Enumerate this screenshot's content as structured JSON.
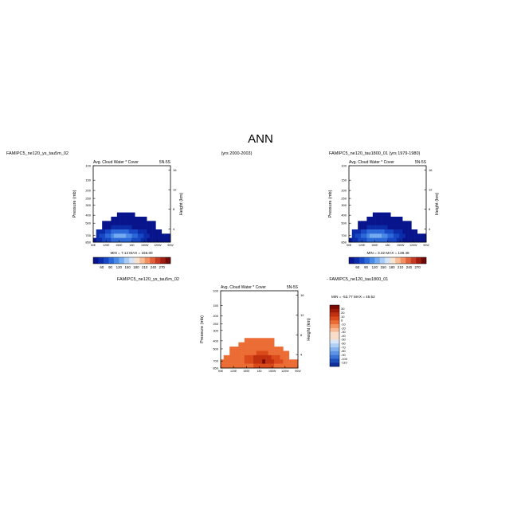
{
  "page": {
    "title": "ANN",
    "upper_left_label": "FAMIPC5_ne120_ys_tau5m_02",
    "upper_center_label": "(yrs 2000-2003)",
    "upper_right_label": "FAMIPC5_ne120_tau1800_01 (yrs 1979-1980)",
    "diff_left_label": "FAMIPC5_ne120_ys_tau5m_02",
    "diff_right_label": "- FAMIPC5_ne120_tau1800_01"
  },
  "colors": {
    "absolute_scale": [
      "#08148c",
      "#0b2ba8",
      "#1747c4",
      "#2c68d8",
      "#4a8ae6",
      "#73aaf0",
      "#a7cbf5",
      "#d4e4f8",
      "#f7e1cf",
      "#f7bd97",
      "#f29062",
      "#e2633b",
      "#c53b22",
      "#a01c12",
      "#6f0a08"
    ],
    "difference_scale": [
      "#0e2f9a",
      "#1d4fba",
      "#3a72d6",
      "#5d93e6",
      "#86b3ef",
      "#b0cff5",
      "#d8e6f8",
      "#f7ddc9",
      "#f6b994",
      "#f3935f",
      "#eb6d35",
      "#db4a1b",
      "#c1300f",
      "#9e1a08",
      "#7a0b03"
    ]
  },
  "chart_data": [
    {
      "type": "heatmap",
      "panel": "upper-left",
      "title": "Avg. Cloud Water * Cover",
      "title_right": "5N-5S",
      "xlabel": "",
      "ylabel": "Pressure (mb)",
      "ylabel_right": "Height (km)",
      "x_ticks": [
        "90E",
        "150E",
        "150W",
        "90W"
      ],
      "x_labels": [
        "90E",
        "120E",
        "150E",
        "180",
        "150W",
        "120W",
        "90W"
      ],
      "y_ticks": [
        100,
        150,
        200,
        250,
        300,
        400,
        500,
        700,
        850
      ],
      "y_ticks_right": [
        4,
        8,
        12,
        16
      ],
      "xlim": [
        "90E",
        "90W"
      ],
      "ylim": [
        850,
        100
      ],
      "grid": false,
      "min_label": "MIN =",
      "min_value": 7.14,
      "max_label": "MAX =",
      "max_value": 156.0,
      "colorbar_labels": [
        "60",
        "90",
        "120",
        "150",
        "180",
        "210",
        "240",
        "270"
      ]
    },
    {
      "type": "heatmap",
      "panel": "upper-right",
      "title": "Avg. Cloud Water * Cover",
      "title_right": "5N-5S",
      "xlabel": "",
      "ylabel": "Pressure (mb)",
      "ylabel_right": "Height (km)",
      "x_ticks": [
        "90E",
        "150E",
        "150W",
        "90W"
      ],
      "x_labels": [
        "90E",
        "120E",
        "150E",
        "180",
        "150W",
        "120W",
        "90W"
      ],
      "y_ticks": [
        100,
        150,
        200,
        250,
        300,
        400,
        500,
        700,
        850
      ],
      "y_ticks_right": [
        4,
        8,
        12,
        16
      ],
      "xlim": [
        "90E",
        "90W"
      ],
      "ylim": [
        850,
        100
      ],
      "grid": false,
      "min_label": "MIN =",
      "min_value": 3.32,
      "max_label": "MAX =",
      "max_value": 138.48,
      "colorbar_labels": [
        "60",
        "90",
        "120",
        "150",
        "180",
        "210",
        "240",
        "270"
      ]
    },
    {
      "type": "heatmap",
      "panel": "difference",
      "title": "Avg. Cloud Water * Cover",
      "title_right": "5N-5S",
      "xlabel": "",
      "ylabel": "Pressure (mb)",
      "ylabel_right": "Height (km)",
      "x_ticks": [
        "90E",
        "150E",
        "150W",
        "90W"
      ],
      "x_labels": [
        "90E",
        "120E",
        "150E",
        "180",
        "150W",
        "120W",
        "90W"
      ],
      "y_ticks": [
        100,
        150,
        200,
        250,
        300,
        400,
        500,
        700,
        850
      ],
      "y_ticks_right": [
        4,
        8,
        12,
        16
      ],
      "xlim": [
        "90E",
        "90W"
      ],
      "ylim": [
        850,
        100
      ],
      "grid": false,
      "min_label": "MIN =",
      "min_value": -53.77,
      "max_label": "MAX =",
      "max_value": 45.52,
      "colorbar_labels": [
        "30",
        "20",
        "10",
        "0",
        "-10",
        "-20",
        "-30",
        "-40",
        "-50",
        "-60",
        "-70",
        "-80",
        "-90",
        "-100",
        "-110"
      ]
    }
  ]
}
